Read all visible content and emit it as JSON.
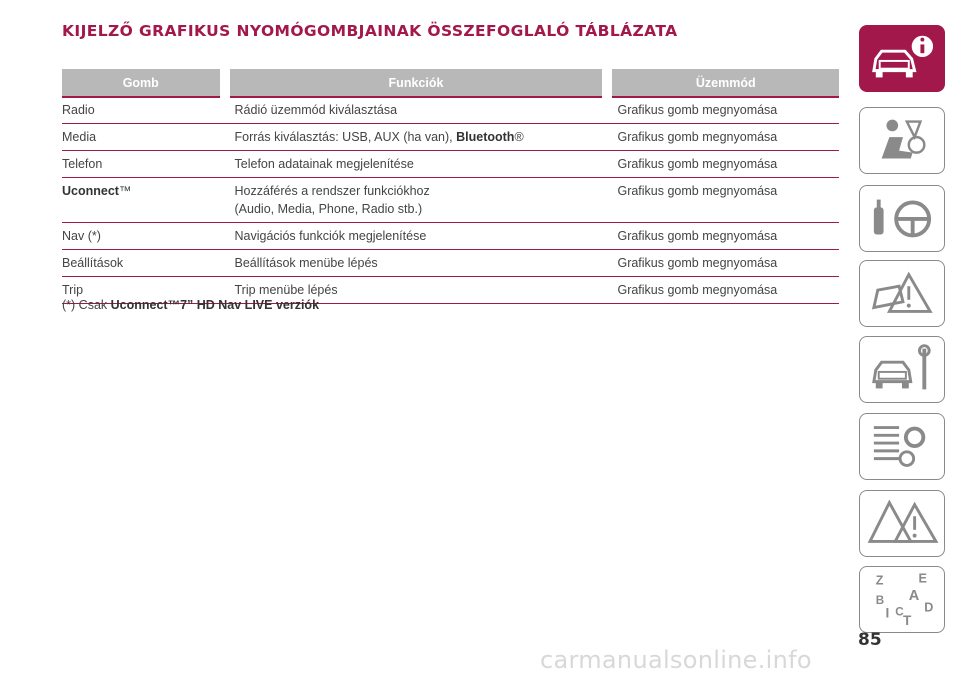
{
  "page": {
    "title": "KIJELZŐ GRAFIKUS NYOMÓGOMBJAINAK ÖSSZEFOGLALÓ TÁBLÁZATA",
    "page_number": "85",
    "watermark": "carmanualsonline.info"
  },
  "table": {
    "headers": [
      "Gomb",
      "Funkciók",
      "Üzemmód"
    ],
    "rows": [
      {
        "gomb": "Radio",
        "funkcio": "Rádió üzemmód kiválasztása",
        "uzemmod": "Grafikus gomb megnyomása"
      },
      {
        "gomb": "Media",
        "funkcio_prefix": "Forrás kiválasztás: USB, AUX (ha van), ",
        "funkcio_bold": "Bluetooth",
        "funkcio_suffix": "®",
        "uzemmod": "Grafikus gomb megnyomása"
      },
      {
        "gomb": "Telefon",
        "funkcio": "Telefon adatainak megjelenítése",
        "uzemmod": "Grafikus gomb megnyomása"
      },
      {
        "gomb_bold": "Uconnect",
        "gomb_suffix": "™",
        "funkcio_line1": "Hozzáférés a rendszer funkciókhoz",
        "funkcio_line2": "(Audio, Media, Phone, Radio stb.)",
        "uzemmod": "Grafikus gomb megnyomása"
      },
      {
        "gomb": "Nav (*)",
        "funkcio": "Navigációs funkciók megjelenítése",
        "uzemmod": "Grafikus gomb megnyomása"
      },
      {
        "gomb": "Beállítások",
        "funkcio": "Beállítások menübe lépés",
        "uzemmod": "Grafikus gomb megnyomása"
      },
      {
        "gomb": "Trip",
        "funkcio": "Trip menübe lépés",
        "uzemmod": "Grafikus gomb megnyomása"
      }
    ]
  },
  "footnote": {
    "prefix": "(*) Csak ",
    "bold": "Uconnect™7” HD Nav LIVE verziók"
  },
  "sidebar": {
    "tabs": [
      {
        "icon": "car-info-icon",
        "active": true
      },
      {
        "icon": "seat-airbag-icon",
        "active": false
      },
      {
        "icon": "steering-wheel-key-icon",
        "active": false
      },
      {
        "icon": "warning-car-icon",
        "active": false
      },
      {
        "icon": "car-maintenance-icon",
        "active": false
      },
      {
        "icon": "technical-data-icon",
        "active": false
      },
      {
        "icon": "emergency-icon",
        "active": false
      },
      {
        "icon": "alphabetical-index-icon",
        "active": false
      }
    ],
    "index_letters": [
      "Z",
      "E",
      "B",
      "A",
      "I",
      "C",
      "D",
      "T"
    ]
  },
  "colors": {
    "accent": "#a3184a",
    "header_bg": "#b8b8b8",
    "text": "#444444"
  }
}
